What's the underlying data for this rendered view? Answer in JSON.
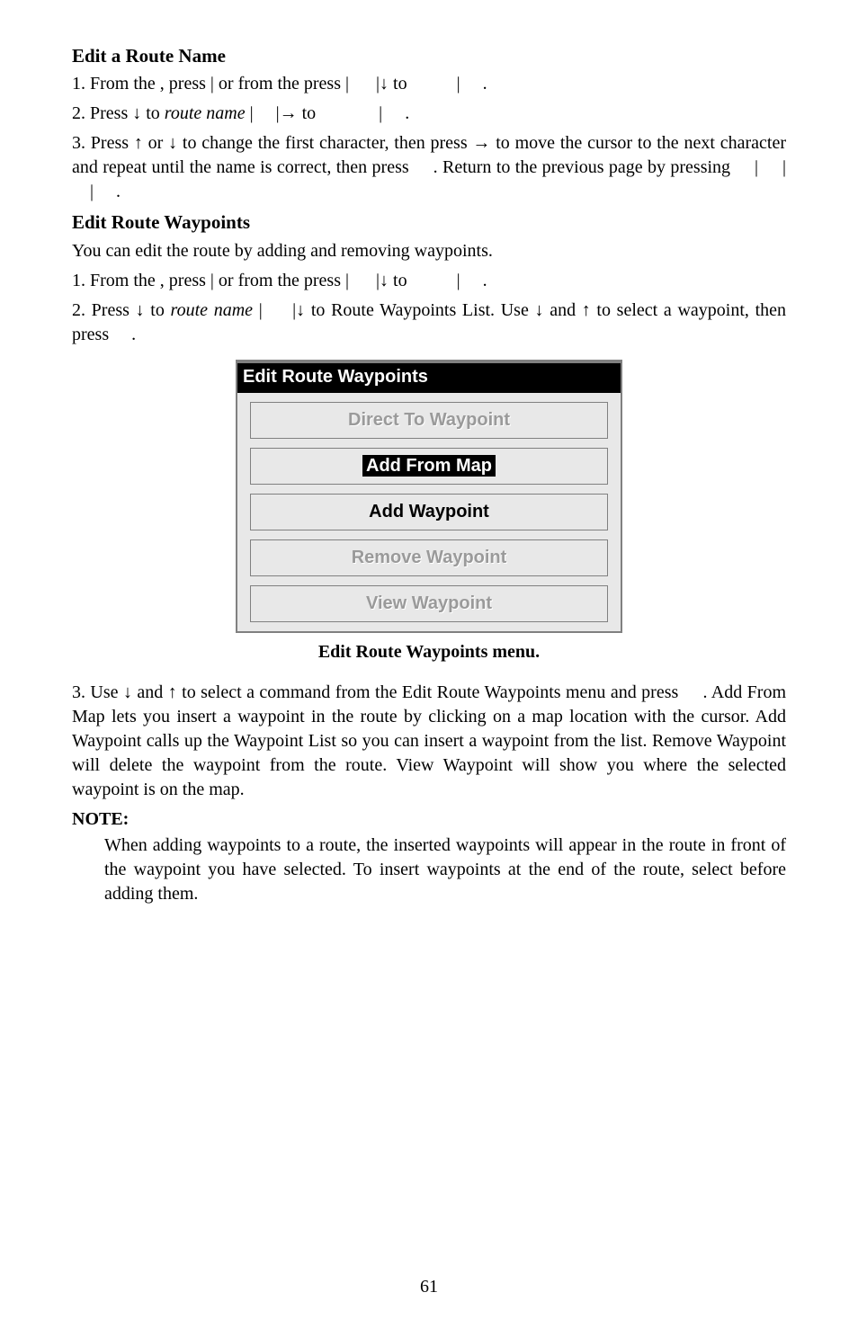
{
  "section1": {
    "heading": "Edit a Route Name",
    "step1a": "1. From the ",
    "step1b": ", press ",
    "step1c": "| ",
    "step1d": " or from the ",
    "step1e": " press ",
    "step1f": "|",
    "step1g": "|↓ to ",
    "step1h": "|",
    "step1i": ".",
    "step2a": "2. Press ↓ to ",
    "step2b_i": "route name",
    "step2c": "|",
    "step2d": "|→ to ",
    "step2e": "|",
    "step2f": ".",
    "step3a": "3. Press ↑ or ↓ to change the first character, then press → to move the cursor to the next character and repeat until the name is correct, then press ",
    "step3b": ". Return to the previous page by pressing ",
    "step3c": "|",
    "step3d": "|",
    "step3e": "|",
    "step3f": "."
  },
  "section2": {
    "heading": "Edit Route Waypoints",
    "intro": "You can edit the route by adding and removing waypoints.",
    "step1a": "1. From the ",
    "step1b": ", press ",
    "step1c": "| ",
    "step1d": " or from the ",
    "step1e": " press ",
    "step1f": "|",
    "step1g": "|↓ to ",
    "step1h": "|",
    "step1i": ".",
    "step2a": "2. Press ↓ to ",
    "step2b_i": "route name",
    "step2c": "|",
    "step2d": "|↓ to Route Waypoints List. Use ↓ and ↑ to select a waypoint, then press ",
    "step2e": "."
  },
  "menu": {
    "title": "Edit Route Waypoints",
    "items": [
      {
        "label": "Direct To Waypoint",
        "disabled": true
      },
      {
        "label": "Add From Map",
        "selected": true
      },
      {
        "label": "Add Waypoint",
        "disabled": false
      },
      {
        "label": "Remove Waypoint",
        "disabled": true
      },
      {
        "label": "View Waypoint",
        "disabled": true
      }
    ],
    "caption": "Edit Route Waypoints menu."
  },
  "section3": {
    "step3a": "3. Use ↓ and ↑ to select a command from the Edit Route Waypoints menu and press ",
    "step3b": ". Add From Map lets you insert a waypoint in the route by clicking on a map location with the cursor. Add Waypoint calls up the Waypoint List so you can insert a waypoint from the list. Remove Waypoint will delete the waypoint from the route. View Waypoint will show you where the selected waypoint is on the map."
  },
  "note": {
    "heading": "NOTE:",
    "body": "When adding waypoints to a route, the inserted waypoints will appear in the route in front of the waypoint you have selected. To insert waypoints at the end of the route, select               before adding them."
  },
  "pagenum": "61"
}
